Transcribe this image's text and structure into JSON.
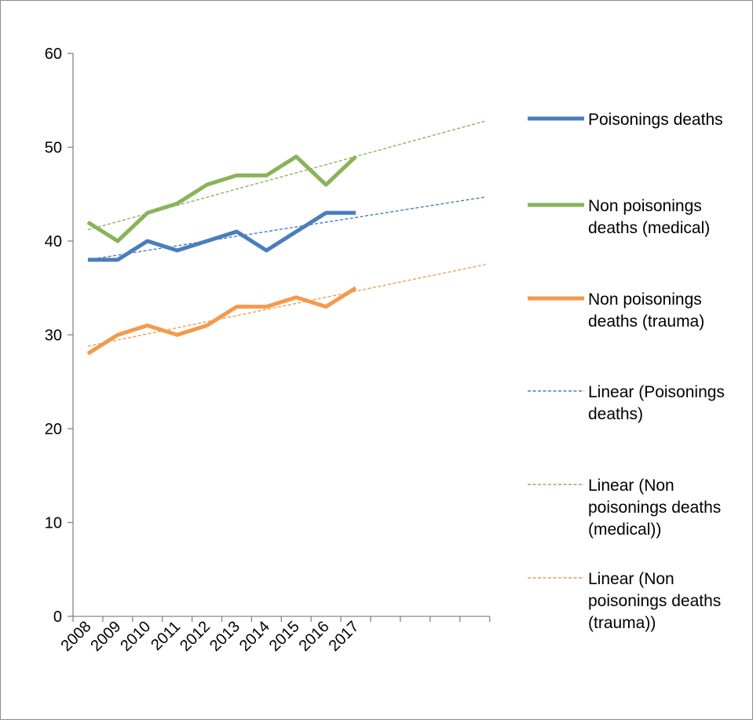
{
  "chart_data": {
    "type": "line",
    "title": "",
    "xlabel": "",
    "ylabel": "",
    "categories": [
      "2008",
      "2009",
      "2010",
      "2011",
      "2012",
      "2013",
      "2014",
      "2015",
      "2016",
      "2017"
    ],
    "ylim": [
      0,
      60
    ],
    "yticks": [
      0,
      10,
      20,
      30,
      40,
      50,
      60
    ],
    "grid": false,
    "legend_position": "right",
    "series": [
      {
        "name": "Poisonings deaths",
        "color": "#4a7ebb",
        "values": [
          38,
          38,
          40,
          39,
          40,
          41,
          39,
          41,
          43,
          43
        ]
      },
      {
        "name": "Non poisonings deaths (medical)",
        "color": "#8ab35a",
        "values": [
          42,
          40,
          43,
          44,
          46,
          47,
          47,
          49,
          46,
          49
        ]
      },
      {
        "name": "Non poisonings deaths (trauma)",
        "color": "#f39a4e",
        "values": [
          28,
          30,
          31,
          30,
          31,
          33,
          33,
          34,
          33,
          35
        ]
      }
    ],
    "trendlines": [
      {
        "name": "Linear (Poisonings deaths)",
        "color": "#4a7ebb",
        "start": 38.0,
        "end": 44.7
      },
      {
        "name": "Linear (Non poisonings deaths (medical))",
        "color": "#8ab35a",
        "start": 41.2,
        "end": 52.8
      },
      {
        "name": "Linear (Non poisonings deaths (trauma))",
        "color": "#f39a4e",
        "start": 28.8,
        "end": 37.5
      }
    ],
    "legend": [
      {
        "kind": "solid",
        "color": "#4a7ebb",
        "lines": [
          "Poisonings deaths"
        ]
      },
      {
        "kind": "solid",
        "color": "#8ab35a",
        "lines": [
          "Non poisonings",
          "deaths (medical)"
        ]
      },
      {
        "kind": "solid",
        "color": "#f39a4e",
        "lines": [
          "Non poisonings",
          "deaths (trauma)"
        ]
      },
      {
        "kind": "dashed",
        "color": "#4a7ebb",
        "lines": [
          "Linear (Poisonings",
          "deaths)"
        ]
      },
      {
        "kind": "dashed",
        "color": "#8ab35a",
        "lines": [
          "Linear (Non",
          "poisonings deaths",
          "(medical))"
        ]
      },
      {
        "kind": "dashed",
        "color": "#f39a4e",
        "lines": [
          "Linear (Non",
          "poisonings deaths",
          "(trauma))"
        ]
      }
    ]
  }
}
